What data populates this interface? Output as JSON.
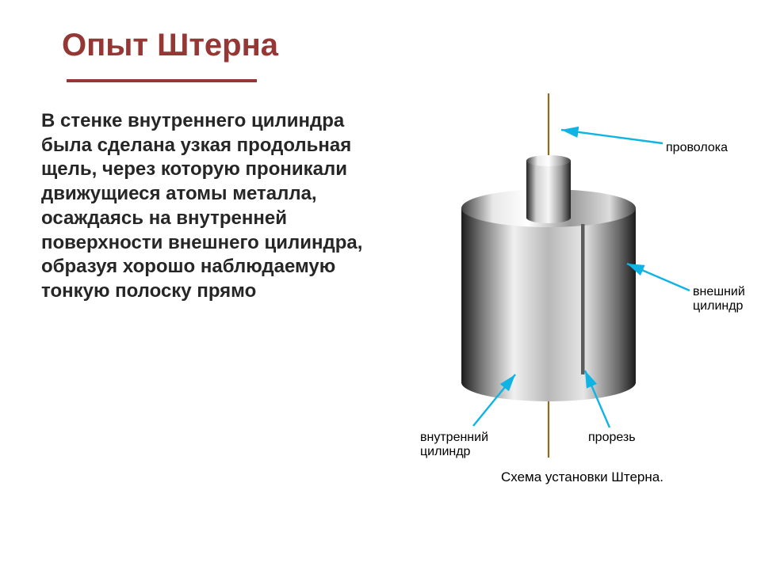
{
  "title": "Опыт  Штерна",
  "title_color": "#953734",
  "title_fontsize": 40,
  "underline_color": "#953734",
  "body_color": "#262626",
  "body_fontsize": 24,
  "body_text": "В стенке внутреннего цилиндра была сделана узкая продольная щель, через которую проникали движущиеся атомы металла, осаждаясь на внутренней поверхности внешнего цилиндра, образуя хорошо наблюдаемую тонкую полоску прямо",
  "diagram": {
    "wire_color": "#8a6d1a",
    "outer_top_light": "#fafafa",
    "outer_top_dark": "#474747",
    "outer_side_light": "#f2f2f2",
    "outer_side_dark": "#1f1f1f",
    "inner_top_light": "#fdfdfd",
    "inner_top_dark": "#4a4a4a",
    "inner_side_light": "#f4f4f4",
    "inner_side_dark": "#2a2a2a",
    "slot_color": "#5c5c5c",
    "arrow_color": "#0fb4e4",
    "label_color": "#000000",
    "label_fontsize": 16,
    "caption_fontsize": 17,
    "labels": {
      "wire": "проволока",
      "outer": "внешний цилиндр",
      "inner": "внутренний цилиндр",
      "slot": "прорезь",
      "caption": "Схема установки Штерна."
    }
  }
}
